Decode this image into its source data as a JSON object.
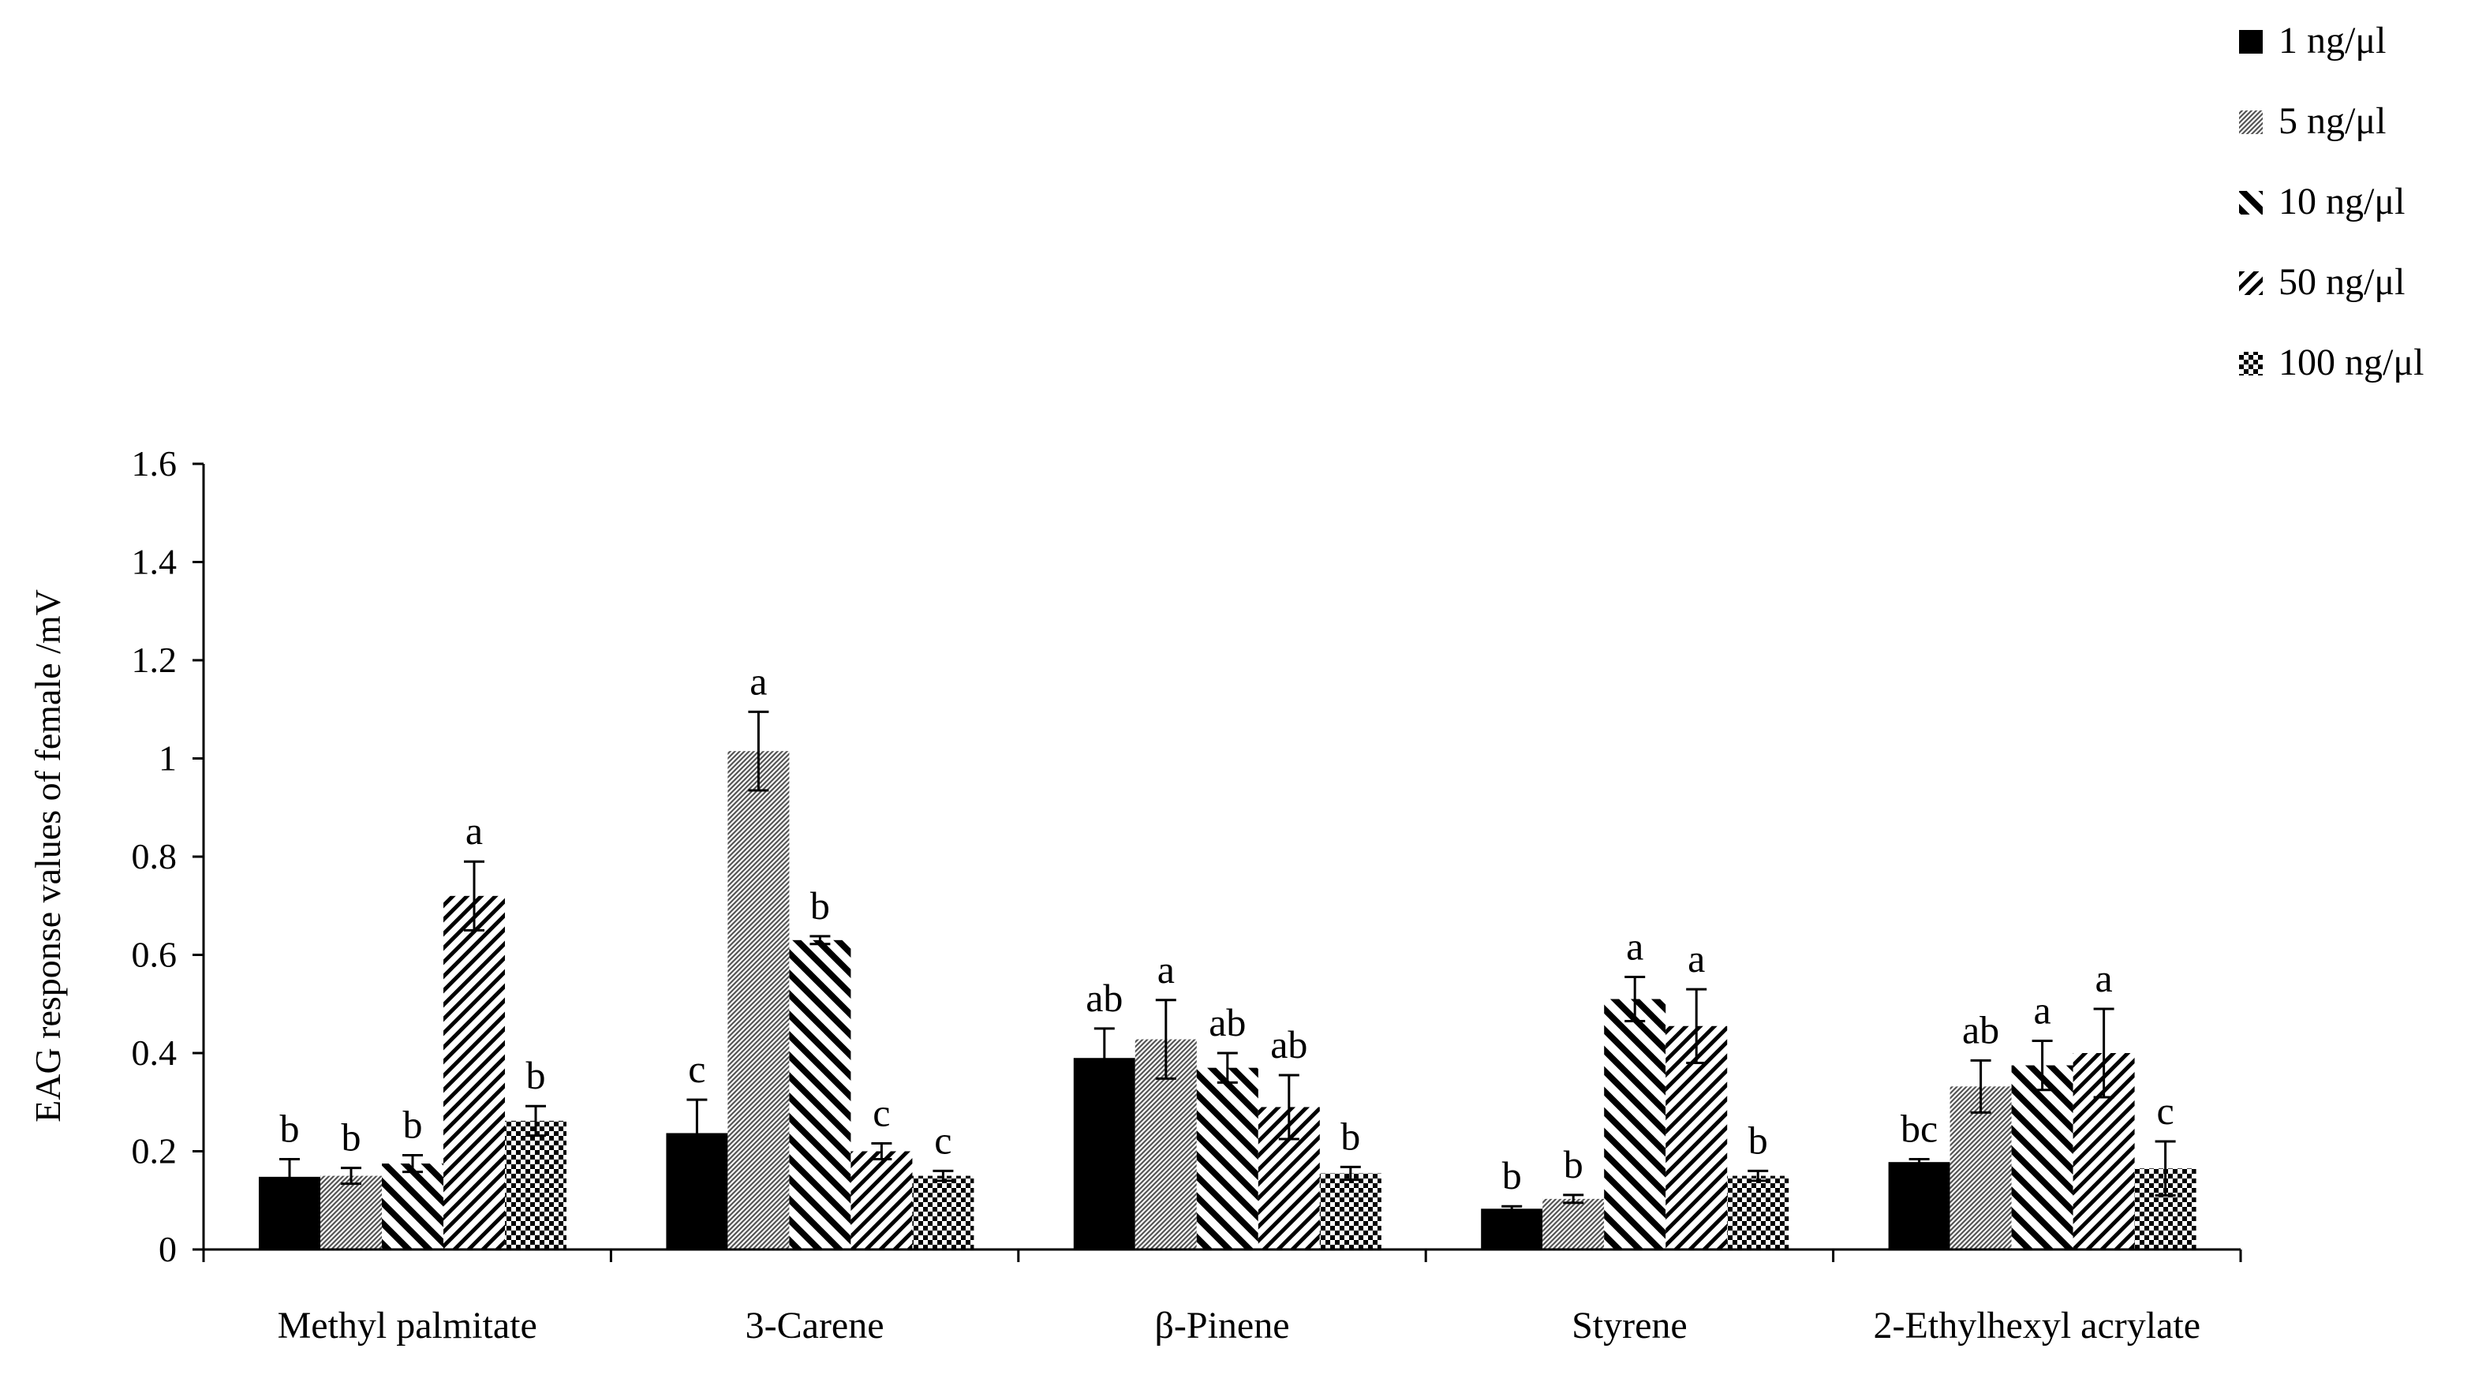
{
  "chart_data": {
    "type": "bar",
    "title": "",
    "xlabel": "",
    "ylabel": "EAG response values of female /mV",
    "ylim": [
      0,
      1.6
    ],
    "yticks": [
      "0",
      "0.2",
      "0.4",
      "0.6",
      "0.8",
      "1",
      "1.2",
      "1.4",
      "1.6"
    ],
    "categories": [
      "Methyl palmitate",
      "3-Carene",
      "β-Pinene",
      "Styrene",
      "2-Ethylhexyl acrylate"
    ],
    "series": [
      {
        "name": "1 ng/μl",
        "pattern": "solid",
        "values": [
          0.148,
          0.237,
          0.39,
          0.083,
          0.178
        ],
        "errors": [
          0.036,
          0.068,
          0.06,
          0.005,
          0.006
        ],
        "letters": [
          "b",
          "c",
          "ab",
          "b",
          "bc"
        ]
      },
      {
        "name": "5 ng/μl",
        "pattern": "dots",
        "values": [
          0.15,
          1.015,
          0.428,
          0.103,
          0.332
        ],
        "errors": [
          0.016,
          0.08,
          0.08,
          0.008,
          0.053
        ],
        "letters": [
          "b",
          "a",
          "a",
          "b",
          "ab"
        ]
      },
      {
        "name": "10 ng/μl",
        "pattern": "diag-down",
        "values": [
          0.175,
          0.63,
          0.37,
          0.51,
          0.375
        ],
        "errors": [
          0.017,
          0.008,
          0.03,
          0.045,
          0.05
        ],
        "letters": [
          "b",
          "b",
          "ab",
          "a",
          "a"
        ]
      },
      {
        "name": "50 ng/μl",
        "pattern": "diag-up",
        "values": [
          0.72,
          0.2,
          0.29,
          0.455,
          0.4
        ],
        "errors": [
          0.07,
          0.016,
          0.065,
          0.075,
          0.09
        ],
        "letters": [
          "a",
          "c",
          "ab",
          "a",
          "a"
        ]
      },
      {
        "name": "100 ng/μl",
        "pattern": "checker",
        "values": [
          0.262,
          0.15,
          0.155,
          0.15,
          0.165
        ],
        "errors": [
          0.03,
          0.01,
          0.013,
          0.01,
          0.055
        ],
        "letters": [
          "b",
          "c",
          "b",
          "b",
          "c"
        ]
      }
    ],
    "legend": "top-right"
  }
}
